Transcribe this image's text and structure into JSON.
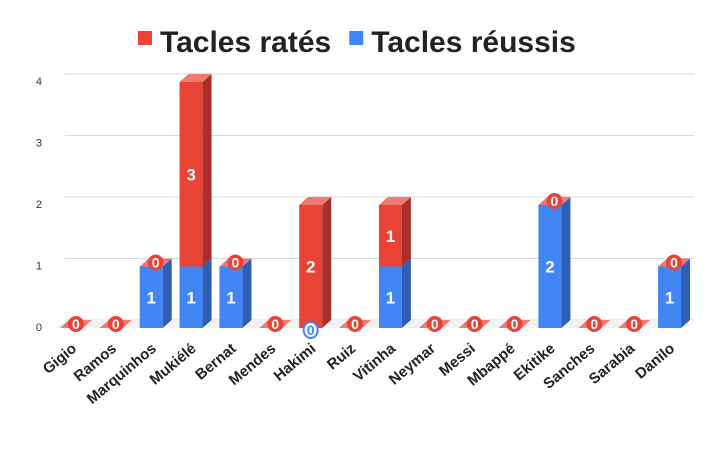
{
  "chart_data": {
    "type": "bar",
    "stacked": true,
    "three_d": true,
    "categories": [
      "Gigio",
      "Ramos",
      "Marquinhos",
      "Mukiélé",
      "Bernat",
      "Mendes",
      "Hakimi",
      "Ruiz",
      "Vitinha",
      "Neymar",
      "Messi",
      "Mbappé",
      "Ekitike",
      "Sanches",
      "Sarabia",
      "Danilo"
    ],
    "series": [
      {
        "name": "Tacles réussis",
        "color": "#4285f4",
        "side_color": "#2f5fb5",
        "top_color": "#7aa8f7",
        "values": [
          0,
          0,
          1,
          1,
          1,
          0,
          0,
          0,
          1,
          0,
          0,
          0,
          2,
          0,
          0,
          1
        ]
      },
      {
        "name": "Tacles ratés",
        "color": "#ea4335",
        "side_color": "#a8302a",
        "top_color": "#f07a70",
        "values": [
          0,
          0,
          0,
          3,
          0,
          0,
          2,
          0,
          1,
          0,
          0,
          0,
          0,
          0,
          0,
          0
        ]
      }
    ],
    "legend_order": [
      "Tacles ratés",
      "Tacles réussis"
    ],
    "legend_position": "top",
    "ylim": [
      0,
      4
    ],
    "yticks": [
      "0",
      "1",
      "2",
      "3",
      "4"
    ],
    "grid": true,
    "title": "",
    "xlabel": "",
    "ylabel": ""
  }
}
